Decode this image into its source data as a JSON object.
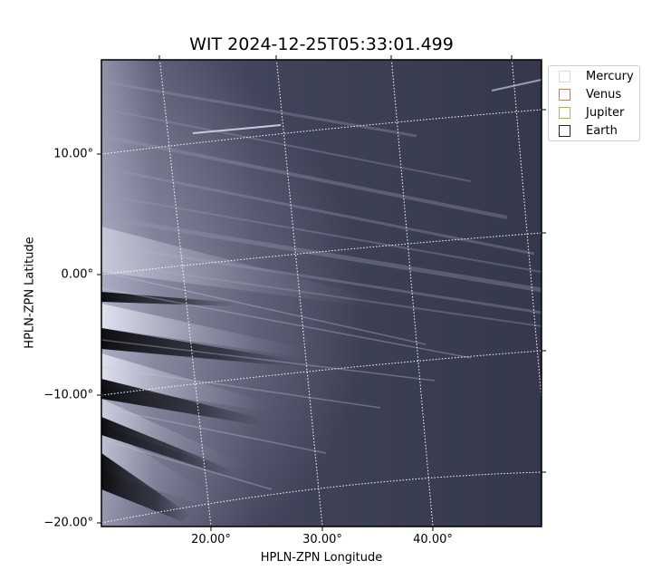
{
  "figure": {
    "title": "WIT 2024-12-25T05:33:01.499",
    "xlabel": "HPLN-ZPN Longitude",
    "ylabel": "HPLN-ZPN Latitude",
    "x_ticks": [
      "20.00°",
      "30.00°",
      "40.00°"
    ],
    "y_ticks": [
      "10.00°",
      "0.00°",
      "−10.00°",
      "−20.00°"
    ]
  },
  "legend": {
    "items": [
      {
        "label": "Mercury",
        "color": "#d9d9d9"
      },
      {
        "label": "Venus",
        "color": "#e07a2e"
      },
      {
        "label": "Jupiter",
        "color": "#e8a317"
      },
      {
        "label": "Earth",
        "color": "#1a1a6e"
      }
    ]
  },
  "colors": {
    "sky_background": "#3a3d52",
    "streamer_bright": "#e6e7f3",
    "grid": "#ffffff"
  }
}
